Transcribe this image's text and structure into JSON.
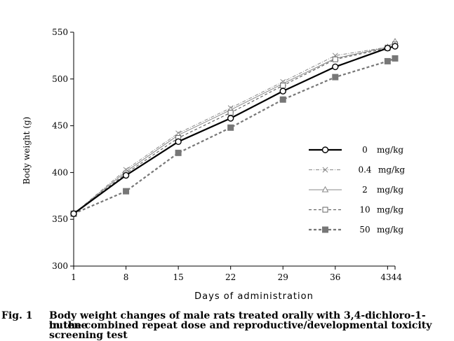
{
  "chart_data": {
    "type": "line",
    "title": "",
    "xlabel": "Days of administration",
    "ylabel": "Body weight (g)",
    "ylim": [
      300,
      550
    ],
    "yticks": [
      "300",
      "350",
      "400",
      "450",
      "500",
      "550"
    ],
    "xticks": [
      "1",
      "8",
      "15",
      "22",
      "29",
      "36",
      "4344"
    ],
    "x": [
      1,
      8,
      15,
      22,
      29,
      36,
      43,
      44
    ],
    "series": [
      {
        "name": "0 mg/kg",
        "dose": "0",
        "unit": "mg/kg",
        "color": "#000000",
        "marker": "circle-open",
        "line": "solid-thick",
        "values": [
          356,
          397,
          433,
          458,
          487,
          513,
          533,
          535
        ]
      },
      {
        "name": "0.4 mg/kg",
        "dose": "0.4",
        "unit": "mg/kg",
        "color": "#888888",
        "marker": "cross",
        "line": "dash-dot",
        "values": [
          356,
          403,
          442,
          469,
          497,
          525,
          534,
          536
        ]
      },
      {
        "name": "2 mg/kg",
        "dose": "2",
        "unit": "mg/kg",
        "color": "#888888",
        "marker": "triangle-open",
        "line": "solid-thin",
        "values": [
          356,
          401,
          440,
          467,
          495,
          522,
          534,
          540
        ]
      },
      {
        "name": "10 mg/kg",
        "dose": "10",
        "unit": "mg/kg",
        "color": "#666666",
        "marker": "square-open",
        "line": "dashed",
        "values": [
          356,
          399,
          437,
          464,
          493,
          521,
          533,
          537
        ]
      },
      {
        "name": "50 mg/kg",
        "dose": "50",
        "unit": "mg/kg",
        "color": "#777777",
        "marker": "square-filled",
        "line": "dashed-thick",
        "values": [
          356,
          380,
          421,
          448,
          478,
          502,
          519,
          522
        ]
      }
    ],
    "legend_position": "right"
  },
  "caption": {
    "label": "Fig. 1",
    "line1": "Body weight changes of male rats treated orally with 3,4-dichloro-1-butene",
    "line2": "in the combined repeat dose and reproductive/developmental toxicity screening test"
  }
}
